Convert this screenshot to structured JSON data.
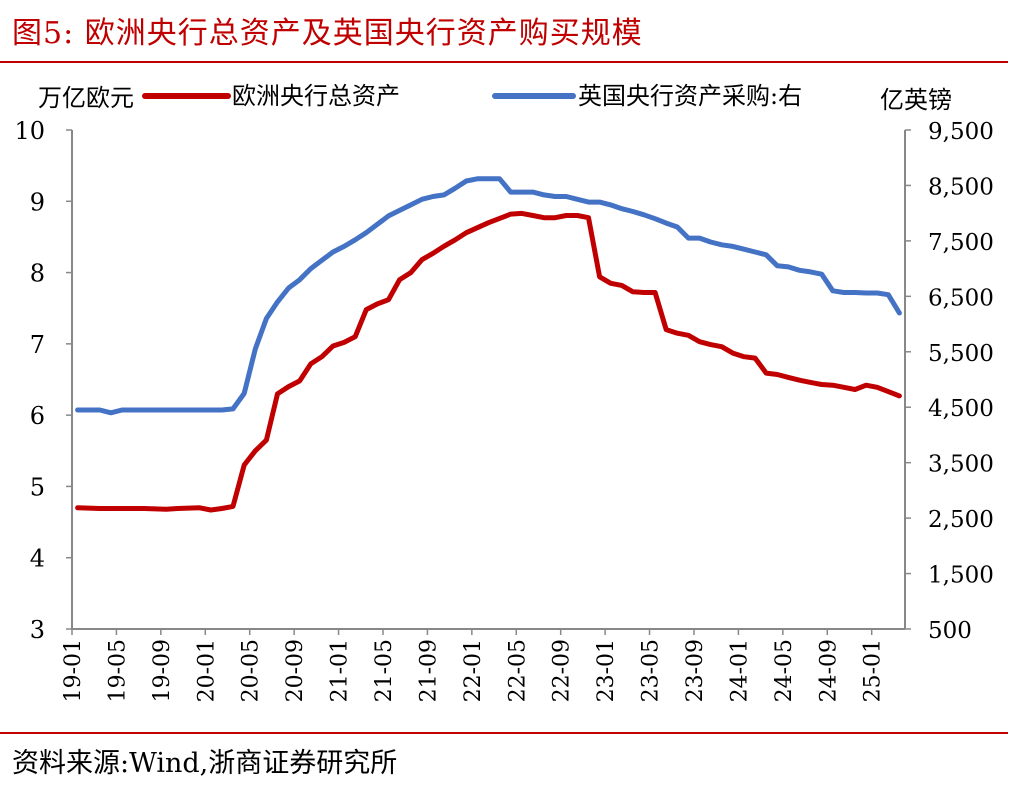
{
  "figure_title": "图5:   欧洲央行总资产及英国央行资产购买规模",
  "source": "资料来源:Wind,浙商证券研究所",
  "colors": {
    "ecb": "#c00000",
    "boe": "#4472c4",
    "rule": "#c00000"
  },
  "chart_data": {
    "type": "line",
    "ylabel_left": "万亿欧元",
    "ylabel_right": "亿英镑",
    "ylim_left": [
      3,
      10
    ],
    "ylim_right": [
      500,
      9500
    ],
    "yticks_left": [
      "3",
      "4",
      "5",
      "6",
      "7",
      "8",
      "9",
      "10"
    ],
    "yticks_right": [
      "500",
      "1,500",
      "2,500",
      "3,500",
      "4,500",
      "5,500",
      "6,500",
      "7,500",
      "8,500",
      "9,500"
    ],
    "xticks": [
      "19-01",
      "19-05",
      "19-09",
      "20-01",
      "20-05",
      "20-09",
      "21-01",
      "21-05",
      "21-09",
      "22-01",
      "22-05",
      "22-09",
      "23-01",
      "23-05",
      "23-09",
      "24-01",
      "24-05",
      "24-09",
      "25-01"
    ],
    "x_range": [
      "19-01",
      "25-03"
    ],
    "legend_position": "top",
    "series": [
      {
        "name": "欧洲央行总资产",
        "axis": "left",
        "color": "#c00000",
        "points": [
          [
            "19-01",
            4.7
          ],
          [
            "19-03",
            4.69
          ],
          [
            "19-05",
            4.69
          ],
          [
            "19-07",
            4.69
          ],
          [
            "19-09",
            4.68
          ],
          [
            "19-10",
            4.69
          ],
          [
            "19-12",
            4.7
          ],
          [
            "20-01",
            4.67
          ],
          [
            "20-02",
            4.69
          ],
          [
            "20-03",
            4.72
          ],
          [
            "20-04",
            5.3
          ],
          [
            "20-05",
            5.5
          ],
          [
            "20-06",
            5.65
          ],
          [
            "20-07",
            6.3
          ],
          [
            "20-08",
            6.4
          ],
          [
            "20-09",
            6.48
          ],
          [
            "20-10",
            6.72
          ],
          [
            "20-11",
            6.82
          ],
          [
            "20-12",
            6.97
          ],
          [
            "21-01",
            7.02
          ],
          [
            "21-02",
            7.1
          ],
          [
            "21-03",
            7.48
          ],
          [
            "21-04",
            7.56
          ],
          [
            "21-05",
            7.62
          ],
          [
            "21-06",
            7.9
          ],
          [
            "21-07",
            8.0
          ],
          [
            "21-08",
            8.18
          ],
          [
            "21-09",
            8.27
          ],
          [
            "21-10",
            8.37
          ],
          [
            "21-11",
            8.46
          ],
          [
            "21-12",
            8.56
          ],
          [
            "22-01",
            8.63
          ],
          [
            "22-02",
            8.7
          ],
          [
            "22-03",
            8.76
          ],
          [
            "22-04",
            8.82
          ],
          [
            "22-05",
            8.83
          ],
          [
            "22-06",
            8.8
          ],
          [
            "22-07",
            8.77
          ],
          [
            "22-08",
            8.77
          ],
          [
            "22-09",
            8.8
          ],
          [
            "22-10",
            8.8
          ],
          [
            "22-11",
            8.77
          ],
          [
            "22-12",
            7.94
          ],
          [
            "23-01",
            7.85
          ],
          [
            "23-02",
            7.82
          ],
          [
            "23-03",
            7.73
          ],
          [
            "23-04",
            7.72
          ],
          [
            "23-05",
            7.72
          ],
          [
            "23-06",
            7.2
          ],
          [
            "23-07",
            7.15
          ],
          [
            "23-08",
            7.12
          ],
          [
            "23-09",
            7.03
          ],
          [
            "23-10",
            6.99
          ],
          [
            "23-11",
            6.96
          ],
          [
            "23-12",
            6.87
          ],
          [
            "24-01",
            6.82
          ],
          [
            "24-02",
            6.8
          ],
          [
            "24-03",
            6.59
          ],
          [
            "24-04",
            6.57
          ],
          [
            "24-05",
            6.53
          ],
          [
            "24-06",
            6.49
          ],
          [
            "24-07",
            6.46
          ],
          [
            "24-08",
            6.43
          ],
          [
            "24-09",
            6.42
          ],
          [
            "24-10",
            6.39
          ],
          [
            "24-11",
            6.36
          ],
          [
            "24-12",
            6.42
          ],
          [
            "25-01",
            6.39
          ],
          [
            "25-02",
            6.33
          ],
          [
            "25-03",
            6.27
          ]
        ]
      },
      {
        "name": "英国央行资产采购:右",
        "axis": "right",
        "color": "#4472c4",
        "points": [
          [
            "19-01",
            4450
          ],
          [
            "19-03",
            4450
          ],
          [
            "19-04",
            4400
          ],
          [
            "19-05",
            4450
          ],
          [
            "19-09",
            4450
          ],
          [
            "19-10",
            4450
          ],
          [
            "19-12",
            4450
          ],
          [
            "20-01",
            4450
          ],
          [
            "20-02",
            4450
          ],
          [
            "20-03",
            4470
          ],
          [
            "20-04",
            4750
          ],
          [
            "20-05",
            5550
          ],
          [
            "20-06",
            6100
          ],
          [
            "20-07",
            6400
          ],
          [
            "20-08",
            6650
          ],
          [
            "20-09",
            6800
          ],
          [
            "20-10",
            7000
          ],
          [
            "20-11",
            7150
          ],
          [
            "20-12",
            7300
          ],
          [
            "21-01",
            7400
          ],
          [
            "21-02",
            7520
          ],
          [
            "21-03",
            7650
          ],
          [
            "21-04",
            7800
          ],
          [
            "21-05",
            7950
          ],
          [
            "21-06",
            8050
          ],
          [
            "21-07",
            8150
          ],
          [
            "21-08",
            8250
          ],
          [
            "21-09",
            8300
          ],
          [
            "21-10",
            8330
          ],
          [
            "21-11",
            8450
          ],
          [
            "21-12",
            8580
          ],
          [
            "22-01",
            8620
          ],
          [
            "22-02",
            8620
          ],
          [
            "22-03",
            8620
          ],
          [
            "22-04",
            8380
          ],
          [
            "22-05",
            8380
          ],
          [
            "22-06",
            8380
          ],
          [
            "22-07",
            8330
          ],
          [
            "22-08",
            8300
          ],
          [
            "22-09",
            8300
          ],
          [
            "22-10",
            8250
          ],
          [
            "22-11",
            8200
          ],
          [
            "22-12",
            8200
          ],
          [
            "23-01",
            8150
          ],
          [
            "23-02",
            8080
          ],
          [
            "23-03",
            8030
          ],
          [
            "23-04",
            7970
          ],
          [
            "23-05",
            7900
          ],
          [
            "23-06",
            7820
          ],
          [
            "23-07",
            7750
          ],
          [
            "23-08",
            7550
          ],
          [
            "23-09",
            7550
          ],
          [
            "23-10",
            7480
          ],
          [
            "23-11",
            7430
          ],
          [
            "23-12",
            7400
          ],
          [
            "24-01",
            7350
          ],
          [
            "24-02",
            7300
          ],
          [
            "24-03",
            7250
          ],
          [
            "24-04",
            7050
          ],
          [
            "24-05",
            7030
          ],
          [
            "24-06",
            6970
          ],
          [
            "24-07",
            6940
          ],
          [
            "24-08",
            6900
          ],
          [
            "24-09",
            6600
          ],
          [
            "24-10",
            6570
          ],
          [
            "24-11",
            6570
          ],
          [
            "24-12",
            6560
          ],
          [
            "25-01",
            6560
          ],
          [
            "25-02",
            6530
          ],
          [
            "25-03",
            6200
          ]
        ]
      }
    ]
  }
}
